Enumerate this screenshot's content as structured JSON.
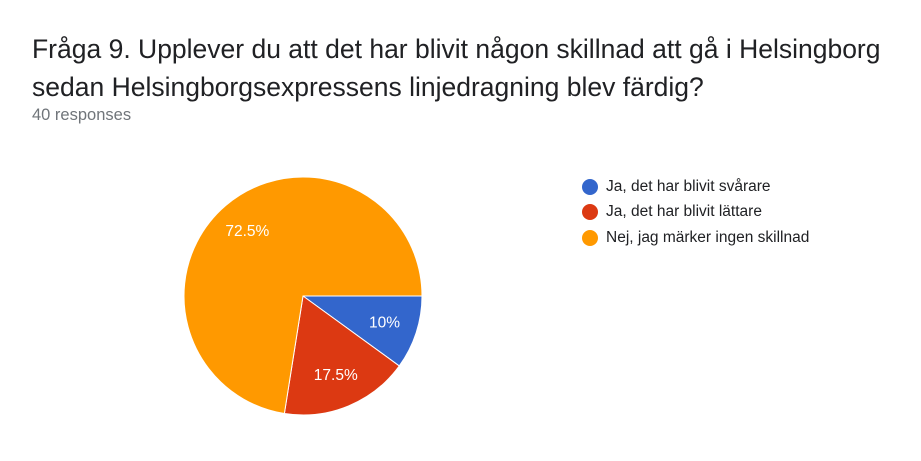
{
  "question": {
    "title": "Fråga 9. Upplever du att det har blivit någon skillnad att gå i Helsingborg sedan Helsingborgsexpressens linjedragning blev färdig?",
    "responses": "40 responses"
  },
  "chart_data": {
    "type": "pie",
    "start_angle_deg": 90,
    "direction": "clockwise",
    "legend_position": "right",
    "slices": [
      {
        "label": "Ja, det har blivit svårare",
        "value": 10,
        "display": "10%",
        "color": "#3366cc"
      },
      {
        "label": "Ja, det har blivit lättare",
        "value": 17.5,
        "display": "17.5%",
        "color": "#dc3912"
      },
      {
        "label": "Nej, jag märker ingen skillnad",
        "value": 72.5,
        "display": "72.5%",
        "color": "#ff9900"
      }
    ]
  }
}
